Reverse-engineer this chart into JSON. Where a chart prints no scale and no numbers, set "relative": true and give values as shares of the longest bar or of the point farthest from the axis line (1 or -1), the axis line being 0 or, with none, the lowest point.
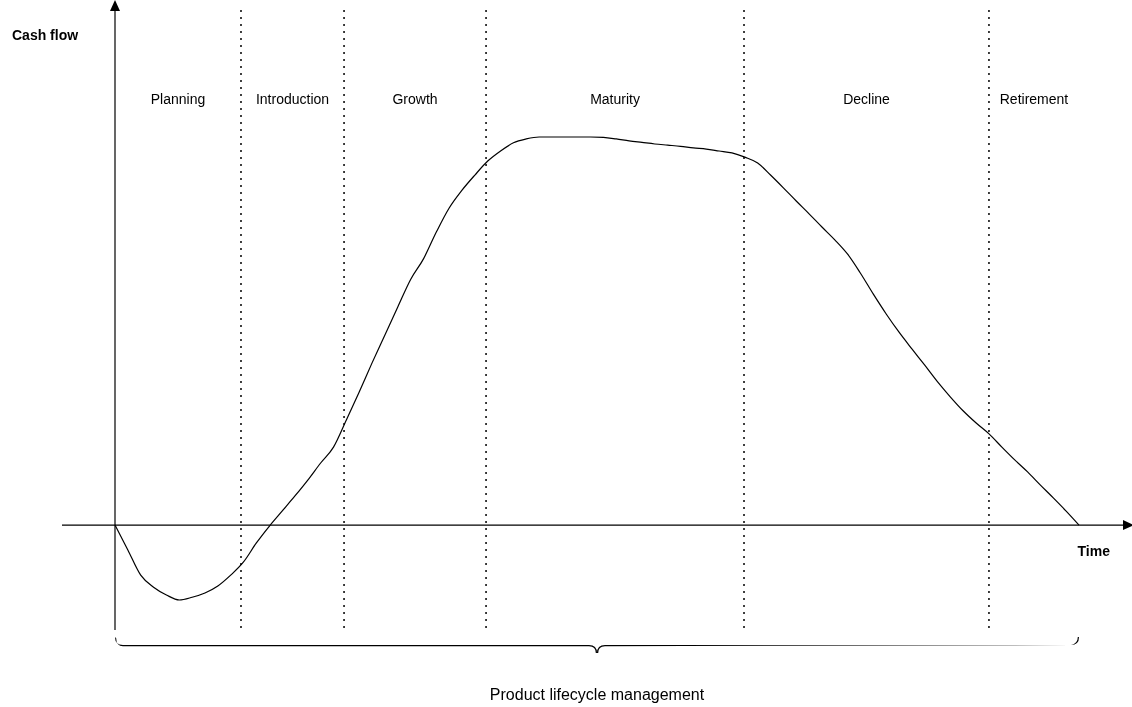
{
  "chart_data": {
    "type": "line",
    "relative": true,
    "xlabel": "Time",
    "grid": "x",
    "categories": [
      null,
      null,
      null,
      null,
      null,
      null,
      null,
      null,
      null,
      null,
      null,
      null,
      null,
      null,
      null,
      null,
      null,
      null,
      null,
      null,
      null,
      null,
      null,
      null,
      null,
      null,
      null,
      null,
      null,
      null,
      null,
      null,
      null,
      null,
      null,
      null,
      null,
      null,
      null,
      null,
      null,
      null,
      null,
      null,
      null,
      null,
      null,
      null,
      null,
      null,
      null,
      null,
      null,
      null,
      null,
      null,
      null,
      null,
      null,
      null,
      null,
      null,
      null,
      null,
      null,
      null,
      null,
      null,
      null,
      null,
      null,
      null,
      null,
      null,
      null,
      null
    ],
    "series": [
      {
        "color": "#000000",
        "values": [
          0,
          -0.064,
          -0.129,
          -0.16,
          -0.18,
          -0.193,
          -0.186,
          -0.175,
          -0.157,
          -0.129,
          -0.095,
          -0.046,
          -0.003,
          0.036,
          0.075,
          0.116,
          0.16,
          0.201,
          0.271,
          0.343,
          0.418,
          0.49,
          0.562,
          0.633,
          0.686,
          0.755,
          0.817,
          0.863,
          0.902,
          0.938,
          0.964,
          0.985,
          0.995,
          1,
          1,
          1,
          1,
          1,
          0.999,
          0.995,
          0.99,
          0.986,
          0.982,
          0.979,
          0.976,
          0.972,
          0.969,
          0.964,
          0.959,
          0.948,
          0.933,
          0.902,
          0.869,
          0.835,
          0.802,
          0.768,
          0.735,
          0.698,
          0.649,
          0.595,
          0.544,
          0.497,
          0.454,
          0.412,
          0.369,
          0.33,
          0.294,
          0.263,
          0.235,
          0.201,
          0.168,
          0.137,
          0.103,
          0.07,
          0.036,
          0
        ]
      }
    ],
    "annotations": [
      "Planning",
      "Introduction",
      "Growth",
      "Maturity",
      "Decline",
      "Retirement",
      "Cash flow",
      "Product lifecycle management"
    ]
  }
}
